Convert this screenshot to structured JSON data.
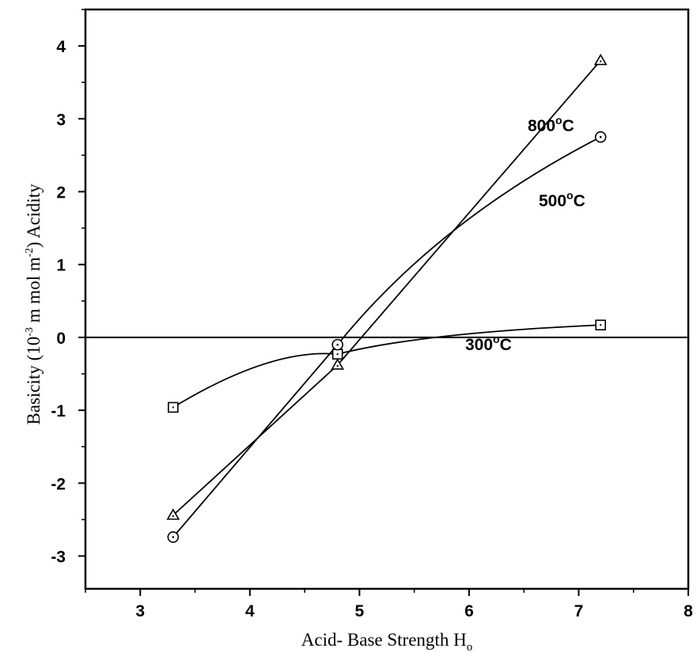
{
  "chart_data": {
    "type": "line",
    "xlabel": {
      "text": "Acid- Base Strength H",
      "sub": "o"
    },
    "ylabel": {
      "pre": "Basicity  (10",
      "sup1": "-3",
      "mid": "  m mol m",
      "sup2": "-2",
      "post": ") Acidity"
    },
    "xlim": [
      2.5,
      8
    ],
    "ylim": [
      -3.45,
      4.5
    ],
    "xticks": [
      3,
      4,
      5,
      6,
      7,
      8
    ],
    "xtick_labels": [
      "3",
      "4",
      "5",
      "6",
      "7",
      "8"
    ],
    "yticks": [
      -3,
      -2,
      -1,
      0,
      1,
      2,
      3,
      4
    ],
    "ytick_labels": [
      "-3",
      "-2",
      "-1",
      "0",
      "1",
      "2",
      "3",
      "4"
    ],
    "zero_line": true,
    "grid": false,
    "x": [
      3.3,
      4.8,
      7.2
    ],
    "series": [
      {
        "name": "300°C",
        "label_parts": [
          "300",
          "o",
          "C"
        ],
        "marker": "square",
        "values": [
          -0.96,
          -0.23,
          0.17
        ]
      },
      {
        "name": "500°C",
        "label_parts": [
          "500",
          "o",
          "C"
        ],
        "marker": "circle",
        "values": [
          -2.74,
          -0.1,
          2.75
        ]
      },
      {
        "name": "800°C",
        "label_parts": [
          "800",
          "o",
          "C"
        ],
        "marker": "triangle",
        "values": [
          -2.44,
          -0.38,
          3.8
        ]
      }
    ]
  }
}
